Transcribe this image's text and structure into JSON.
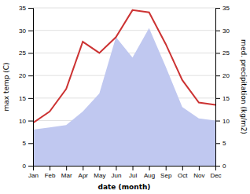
{
  "chart_data": {
    "type": "line",
    "categories": [
      "Jan",
      "Feb",
      "Mar",
      "Apr",
      "May",
      "Jun",
      "Jul",
      "Aug",
      "Sep",
      "Oct",
      "Nov",
      "Dec"
    ],
    "series": [
      {
        "type": "area",
        "color": "#c0c8f0",
        "axis": "y2",
        "values": [
          8.0,
          8.5,
          9.0,
          12.0,
          16.0,
          28.5,
          24.0,
          30.5,
          22.0,
          13.0,
          10.5,
          10.0
        ]
      },
      {
        "type": "line",
        "color": "#cc3333",
        "values": [
          9.5,
          12.0,
          17.0,
          27.5,
          25.0,
          28.5,
          34.5,
          34.0,
          27.0,
          19.0,
          14.0,
          13.5
        ]
      }
    ],
    "x_label": "date (month)",
    "y_label": "max temp (C)",
    "y2_label": "med. precipitation (kg/m2)",
    "ylim": [
      0,
      35
    ],
    "yticks": [
      0,
      5,
      10,
      15,
      20,
      25,
      30,
      35
    ],
    "y2lim": [
      0,
      35
    ],
    "y2ticks": [
      0,
      5,
      10,
      15,
      20,
      25,
      30,
      35
    ],
    "grid": true
  }
}
